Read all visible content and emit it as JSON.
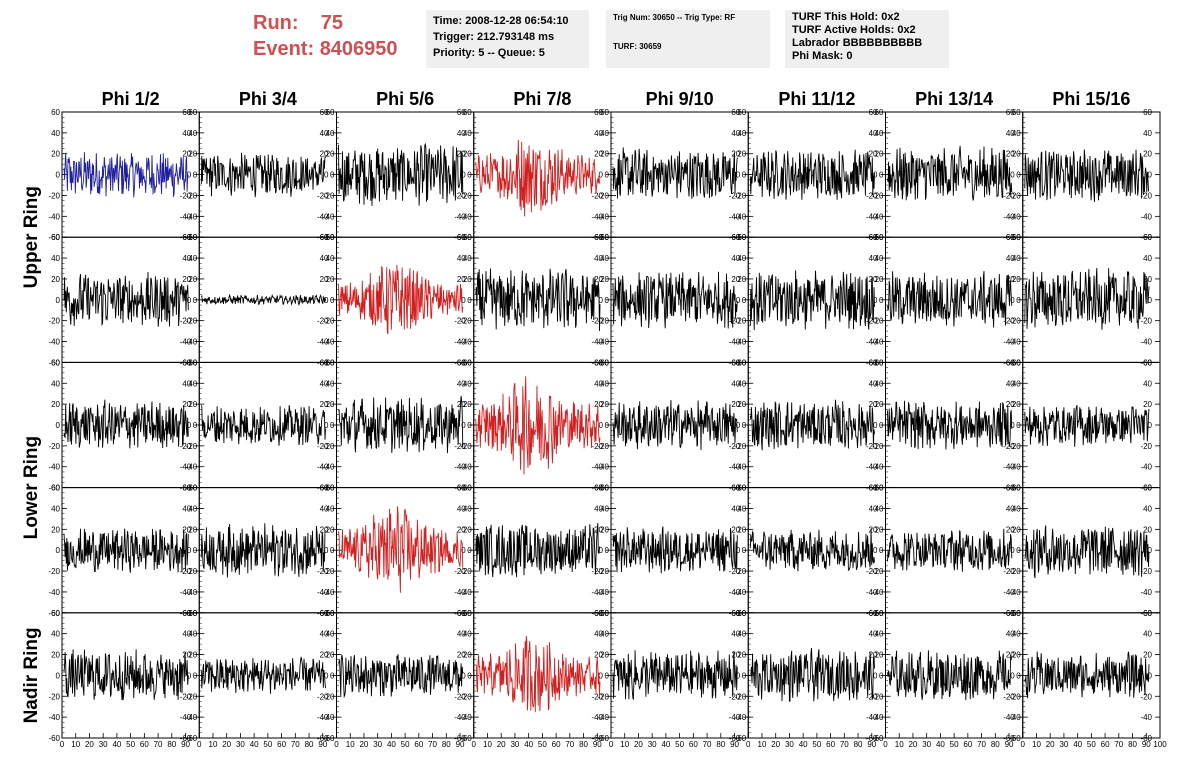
{
  "header": {
    "run_label": "Run:",
    "run_value": "75",
    "event_label": "Event:",
    "event_value": "8406950",
    "info1": [
      "Time: 2008-12-28 06:54:10",
      "Trigger: 212.793148 ms",
      "Priority: 5 -- Queue: 5"
    ],
    "info2": [
      "Trig Num: 30650 -- Trig Type: RF",
      "",
      "TURF: 30659"
    ],
    "info3": [
      "TURF This Hold: 0x2",
      "TURF Active Holds: 0x2",
      "Labrador BBBBBBBBBB",
      "Phi Mask: 0"
    ]
  },
  "chart_data": {
    "type": "line",
    "columns": [
      "Phi 1/2",
      "Phi 3/4",
      "Phi 5/6",
      "Phi 7/8",
      "Phi 9/10",
      "Phi 11/12",
      "Phi 13/14",
      "Phi 15/16"
    ],
    "row_groups": [
      {
        "label": "Upper Ring",
        "rows": [
          0,
          1
        ]
      },
      {
        "label": "Lower Ring",
        "rows": [
          2,
          3
        ]
      },
      {
        "label": "Nadir Ring",
        "rows": [
          4
        ]
      }
    ],
    "ylim": [
      -60,
      60
    ],
    "yticks": [
      -60,
      -40,
      -20,
      0,
      20,
      40,
      60
    ],
    "xlim": [
      0,
      100
    ],
    "xticks": [
      0,
      10,
      20,
      30,
      40,
      50,
      60,
      70,
      80,
      90,
      100
    ],
    "colors": {
      "default": "#000000",
      "highlight": "#d02020",
      "blue": "#2020a0"
    },
    "panels": [
      {
        "row": 0,
        "col": 0,
        "color": "blue",
        "amp": 15
      },
      {
        "row": 0,
        "col": 1,
        "color": "default",
        "amp": 14
      },
      {
        "row": 0,
        "col": 2,
        "color": "default",
        "amp": 20
      },
      {
        "row": 0,
        "col": 3,
        "color": "highlight",
        "amp": 20
      },
      {
        "row": 0,
        "col": 4,
        "color": "default",
        "amp": 17
      },
      {
        "row": 0,
        "col": 5,
        "color": "default",
        "amp": 16
      },
      {
        "row": 0,
        "col": 6,
        "color": "default",
        "amp": 18
      },
      {
        "row": 0,
        "col": 7,
        "color": "default",
        "amp": 17
      },
      {
        "row": 1,
        "col": 0,
        "color": "default",
        "amp": 18
      },
      {
        "row": 1,
        "col": 1,
        "color": "default",
        "amp": 3
      },
      {
        "row": 1,
        "col": 2,
        "color": "highlight",
        "amp": 18
      },
      {
        "row": 1,
        "col": 3,
        "color": "default",
        "amp": 20
      },
      {
        "row": 1,
        "col": 4,
        "color": "default",
        "amp": 18
      },
      {
        "row": 1,
        "col": 5,
        "color": "default",
        "amp": 19
      },
      {
        "row": 1,
        "col": 6,
        "color": "default",
        "amp": 18
      },
      {
        "row": 1,
        "col": 7,
        "color": "default",
        "amp": 20
      },
      {
        "row": 2,
        "col": 0,
        "color": "default",
        "amp": 16
      },
      {
        "row": 2,
        "col": 1,
        "color": "default",
        "amp": 13
      },
      {
        "row": 2,
        "col": 2,
        "color": "default",
        "amp": 18
      },
      {
        "row": 2,
        "col": 3,
        "color": "highlight",
        "amp": 24
      },
      {
        "row": 2,
        "col": 4,
        "color": "default",
        "amp": 16
      },
      {
        "row": 2,
        "col": 5,
        "color": "default",
        "amp": 16
      },
      {
        "row": 2,
        "col": 6,
        "color": "default",
        "amp": 16
      },
      {
        "row": 2,
        "col": 7,
        "color": "default",
        "amp": 14
      },
      {
        "row": 3,
        "col": 0,
        "color": "default",
        "amp": 14
      },
      {
        "row": 3,
        "col": 1,
        "color": "default",
        "amp": 17
      },
      {
        "row": 3,
        "col": 2,
        "color": "highlight",
        "amp": 22
      },
      {
        "row": 3,
        "col": 3,
        "color": "default",
        "amp": 17
      },
      {
        "row": 3,
        "col": 4,
        "color": "default",
        "amp": 15
      },
      {
        "row": 3,
        "col": 5,
        "color": "default",
        "amp": 14
      },
      {
        "row": 3,
        "col": 6,
        "color": "default",
        "amp": 14
      },
      {
        "row": 3,
        "col": 7,
        "color": "default",
        "amp": 18
      },
      {
        "row": 4,
        "col": 0,
        "color": "default",
        "amp": 17
      },
      {
        "row": 4,
        "col": 1,
        "color": "default",
        "amp": 12
      },
      {
        "row": 4,
        "col": 2,
        "color": "default",
        "amp": 14
      },
      {
        "row": 4,
        "col": 3,
        "color": "highlight",
        "amp": 20
      },
      {
        "row": 4,
        "col": 4,
        "color": "default",
        "amp": 16
      },
      {
        "row": 4,
        "col": 5,
        "color": "default",
        "amp": 17
      },
      {
        "row": 4,
        "col": 6,
        "color": "default",
        "amp": 16
      },
      {
        "row": 4,
        "col": 7,
        "color": "default",
        "amp": 15
      }
    ]
  }
}
